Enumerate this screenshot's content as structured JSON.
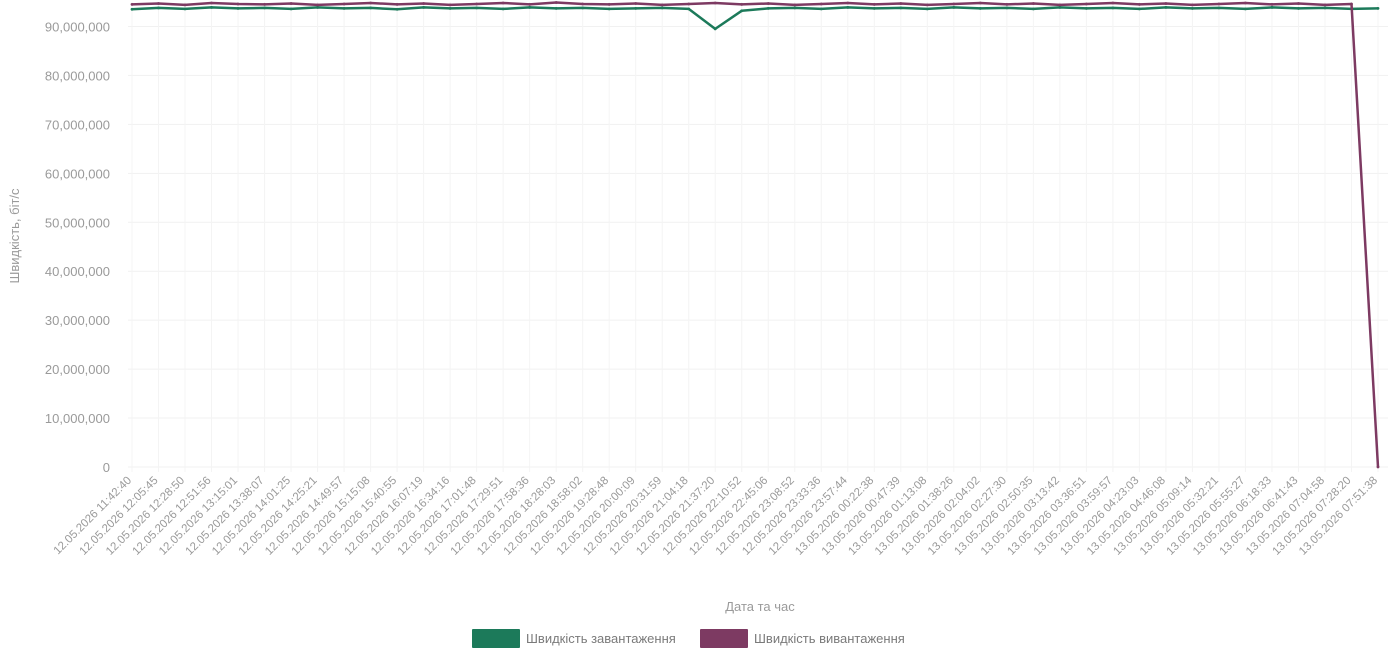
{
  "chart_data": {
    "type": "line",
    "title": "",
    "xlabel": "Дата та час",
    "ylabel": "Швидкість, біт/с",
    "ylim": [
      0,
      95000000
    ],
    "y_ticks": [
      0,
      10000000,
      20000000,
      30000000,
      40000000,
      50000000,
      60000000,
      70000000,
      80000000,
      90000000
    ],
    "y_tick_labels": [
      "0",
      "10,000,000",
      "20,000,000",
      "30,000,000",
      "40,000,000",
      "50,000,000",
      "60,000,000",
      "70,000,000",
      "80,000,000",
      "90,000,000"
    ],
    "grid": true,
    "legend": "bottom-center",
    "x_tick_labels": [
      "12.05.2026 11:42:40",
      "12.05.2026 12:05:45",
      "12.05.2026 12:28:50",
      "12.05.2026 12:51:56",
      "12.05.2026 13:15:01",
      "12.05.2026 13:38:07",
      "12.05.2026 14:01:25",
      "12.05.2026 14:25:21",
      "12.05.2026 14:49:57",
      "12.05.2026 15:15:08",
      "12.05.2026 15:40:55",
      "12.05.2026 16:07:19",
      "12.05.2026 16:34:16",
      "12.05.2026 17:01:48",
      "12.05.2026 17:29:51",
      "12.05.2026 17:58:36",
      "12.05.2026 18:28:03",
      "12.05.2026 18:58:02",
      "12.05.2026 19:28:48",
      "12.05.2026 20:00:09",
      "12.05.2026 20:31:59",
      "12.05.2026 21:04:18",
      "12.05.2026 21:37:20",
      "12.05.2026 22:10:52",
      "12.05.2026 22:45:06",
      "12.05.2026 23:08:52",
      "12.05.2026 23:33:36",
      "12.05.2026 23:57:44",
      "13.05.2026 00:22:38",
      "13.05.2026 00:47:39",
      "13.05.2026 01:13:08",
      "13.05.2026 01:38:26",
      "13.05.2026 02:04:02",
      "13.05.2026 02:27:30",
      "13.05.2026 02:50:35",
      "13.05.2026 03:13:42",
      "13.05.2026 03:36:51",
      "13.05.2026 03:59:57",
      "13.05.2026 04:23:03",
      "13.05.2026 04:46:08",
      "13.05.2026 05:09:14",
      "13.05.2026 05:32:21",
      "13.05.2026 05:55:27",
      "13.05.2026 06:18:33",
      "13.05.2026 06:41:43",
      "13.05.2026 07:04:58",
      "13.05.2026 07:28:20",
      "13.05.2026 07:51:38"
    ],
    "series": [
      {
        "name": "Швидкість завантаження",
        "color": "#1c7a5a",
        "values": [
          93500000,
          93800000,
          93600000,
          93900000,
          93700000,
          93800000,
          93600000,
          93900000,
          93700000,
          93800000,
          93500000,
          93900000,
          93700000,
          93800000,
          93600000,
          93900000,
          93700000,
          93800000,
          93600000,
          93700000,
          93800000,
          93600000,
          89500000,
          93200000,
          93700000,
          93800000,
          93600000,
          93900000,
          93700000,
          93800000,
          93600000,
          93900000,
          93700000,
          93800000,
          93600000,
          93900000,
          93700000,
          93800000,
          93600000,
          93900000,
          93700000,
          93800000,
          93600000,
          93900000,
          93700000,
          93800000,
          93600000,
          93700000
        ]
      },
      {
        "name": "Швидкість вивантаження",
        "color": "#7d3a62",
        "values": [
          94500000,
          94700000,
          94400000,
          94800000,
          94600000,
          94500000,
          94700000,
          94400000,
          94600000,
          94800000,
          94500000,
          94700000,
          94400000,
          94600000,
          94800000,
          94500000,
          94900000,
          94600000,
          94500000,
          94700000,
          94400000,
          94600000,
          94800000,
          94500000,
          94700000,
          94400000,
          94600000,
          94800000,
          94500000,
          94700000,
          94400000,
          94600000,
          94800000,
          94500000,
          94700000,
          94400000,
          94600000,
          94800000,
          94500000,
          94700000,
          94400000,
          94600000,
          94800000,
          94500000,
          94700000,
          94400000,
          94600000,
          0
        ]
      }
    ]
  }
}
